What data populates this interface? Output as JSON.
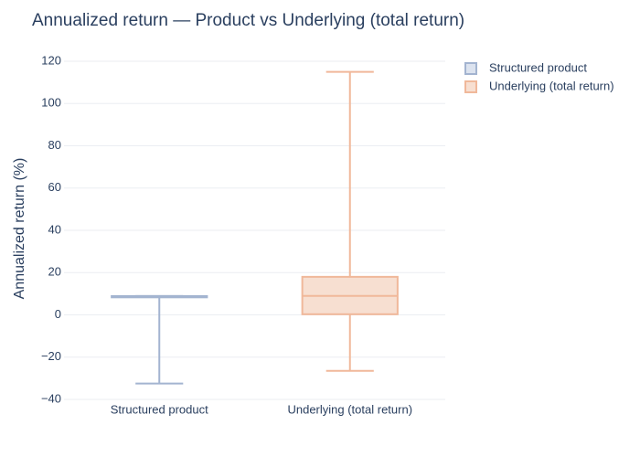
{
  "chart_data": {
    "type": "box",
    "title": "Annualized return — Product vs Underlying (total return)",
    "y_label": "Annualized return (%)",
    "categories": [
      "Structured product",
      "Underlying (total return)"
    ],
    "series": [
      {
        "name": "Structured product",
        "color": "#a3b4d0",
        "fill": "#dce3ef",
        "min": -32.5,
        "q1": 8.3,
        "median": 8.6,
        "q3": 8.9,
        "max": 8.9
      },
      {
        "name": "Underlying (total return)",
        "color": "#f0b89a",
        "fill": "#f7dfd1",
        "min": -26.5,
        "q1": 0.3,
        "median": 9,
        "q3": 18,
        "max": 115
      }
    ],
    "ylim": [
      -40,
      120
    ],
    "yticks": [
      {
        "value": -40,
        "label": "−40"
      },
      {
        "value": -20,
        "label": "−20"
      },
      0,
      20,
      40,
      60,
      80,
      100,
      120
    ],
    "grid": true,
    "legend": "top-right"
  }
}
